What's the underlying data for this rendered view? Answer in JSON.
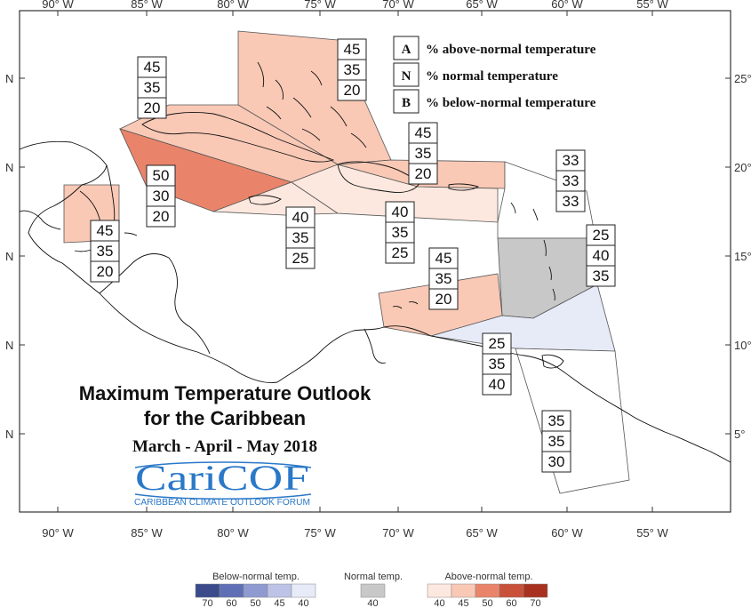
{
  "map": {
    "title_line1": "Maximum Temperature Outlook",
    "title_line2": "for the Caribbean",
    "season": "March - April - May 2018",
    "brand": "CariCOF",
    "brand_sub": "CARIBBEAN CLIMATE OUTLOOK FORUM",
    "lon_ticks": [
      "90° W",
      "85° W",
      "80° W",
      "75° W",
      "70° W",
      "65° W",
      "60° W",
      "55° W"
    ],
    "lat_ticks_left": [
      "N",
      "N",
      "N",
      "N",
      "N"
    ],
    "lat_ticks_right": [
      "25°",
      "20°",
      "15°",
      "10°",
      "5°"
    ]
  },
  "legend": {
    "items": [
      {
        "key": "A",
        "text": "% above-normal temperature"
      },
      {
        "key": "N",
        "text": "% normal temperature"
      },
      {
        "key": "B",
        "text": "% below-normal temperature"
      }
    ]
  },
  "regions": [
    {
      "id": "bahamas",
      "probs": [
        "45",
        "35",
        "20"
      ],
      "color": "#f9c9b6"
    },
    {
      "id": "cuba",
      "probs": [
        "45",
        "35",
        "20"
      ],
      "color": "#f9c9b6"
    },
    {
      "id": "belize",
      "probs": [
        "45",
        "35",
        "20"
      ],
      "color": "#f9c9b6"
    },
    {
      "id": "cayman",
      "probs": [
        "50",
        "30",
        "20"
      ],
      "color": "#e9846a"
    },
    {
      "id": "jamaica",
      "probs": [
        "40",
        "35",
        "25"
      ],
      "color": "#fde8df"
    },
    {
      "id": "hispaniola",
      "probs": [
        "40",
        "35",
        "25"
      ],
      "color": "#fde8df"
    },
    {
      "id": "puertorico",
      "probs": [
        "45",
        "35",
        "20"
      ],
      "color": "#f9c9b6"
    },
    {
      "id": "leewards",
      "probs": [
        "33",
        "33",
        "33"
      ],
      "color": "#ffffff"
    },
    {
      "id": "windwards",
      "probs": [
        "25",
        "40",
        "35"
      ],
      "color": "#c8c8c8"
    },
    {
      "id": "abc",
      "probs": [
        "45",
        "35",
        "20"
      ],
      "color": "#f9c9b6"
    },
    {
      "id": "trinidad",
      "probs": [
        "25",
        "35",
        "40"
      ],
      "color": "#e7eaf7"
    },
    {
      "id": "guianas",
      "probs": [
        "35",
        "35",
        "30"
      ],
      "color": "#ffffff"
    }
  ],
  "colorbar": {
    "below": {
      "title": "Below-normal temp.",
      "ticks": [
        "70",
        "60",
        "50",
        "45",
        "40"
      ],
      "colors": [
        "#3a4a8a",
        "#5f6fb6",
        "#8f9bd0",
        "#bcc3e6",
        "#e7eaf7"
      ]
    },
    "normal": {
      "title": "Normal temp.",
      "ticks": [
        "40"
      ],
      "colors": [
        "#c8c8c8"
      ]
    },
    "above": {
      "title": "Above-normal temp.",
      "ticks": [
        "40",
        "45",
        "50",
        "60",
        "70"
      ],
      "colors": [
        "#fde8df",
        "#f9c9b6",
        "#e9846a",
        "#c9503a",
        "#a8321f"
      ]
    }
  }
}
